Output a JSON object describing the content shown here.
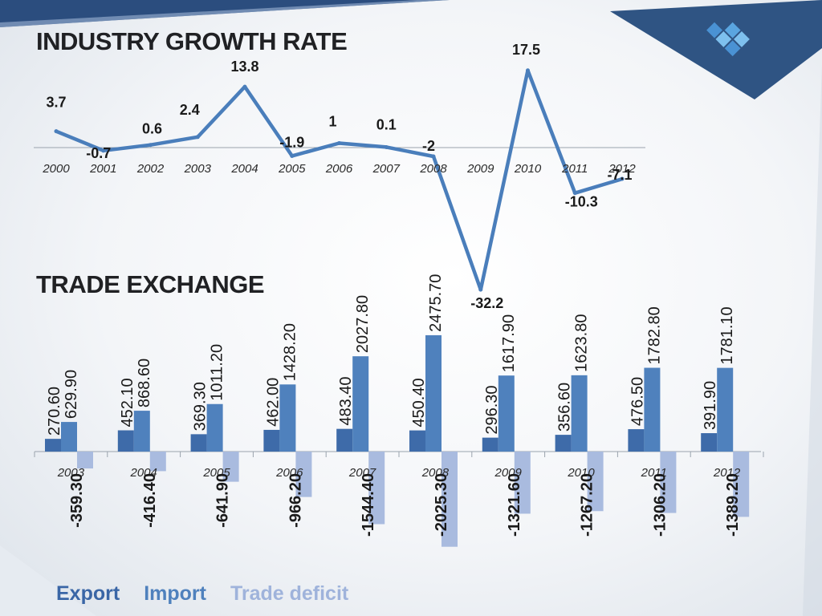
{
  "colors": {
    "line": "#4a7ebb",
    "export": "#3e6ba9",
    "import": "#4f81bd",
    "deficit": "#a9bbdf",
    "legend_export": "#3a66a6",
    "legend_import": "#4f81bd",
    "legend_deficit": "#9fb3db",
    "axis": "#9aa3ad",
    "text": "#1a1a1a"
  },
  "logo": {
    "icon": "diamond-logo-icon"
  },
  "growth": {
    "title": "INDUSTRY GROWTH RATE"
  },
  "trade": {
    "title": "TRADE EXCHANGE"
  },
  "legend": {
    "export": "Export",
    "import": "Import",
    "deficit": "Trade deficit"
  },
  "chart_data": [
    {
      "type": "line",
      "title": "INDUSTRY GROWTH RATE",
      "x": [
        "2000",
        "2001",
        "2002",
        "2003",
        "2004",
        "2005",
        "2006",
        "2007",
        "2008",
        "2009",
        "2010",
        "2011",
        "2012"
      ],
      "series": [
        {
          "values": [
            3.7,
            -0.7,
            0.6,
            2.4,
            13.8,
            -1.9,
            1,
            0.1,
            -2,
            -32.2,
            17.5,
            -10.3,
            -7.1
          ],
          "labels": [
            "3.7",
            "-0.7",
            "0.6",
            "2.4",
            "13.8",
            "-1.9",
            "1",
            "0.1",
            "-2",
            "-32.2",
            "17.5",
            "-10.3",
            "-7.1"
          ]
        }
      ],
      "grid": false
    },
    {
      "type": "bar",
      "title": "TRADE EXCHANGE",
      "categories": [
        "2003",
        "2004",
        "2005",
        "2006",
        "2007",
        "2008",
        "2009",
        "2010",
        "2011",
        "2012"
      ],
      "series": [
        {
          "name": "Export",
          "values": [
            270.6,
            452.1,
            369.3,
            462.0,
            483.4,
            450.4,
            296.3,
            356.6,
            476.5,
            391.9
          ],
          "labels": [
            "270.60",
            "452.10",
            "369.30",
            "462.00",
            "483.40",
            "450.40",
            "296.30",
            "356.60",
            "476.50",
            "391.90"
          ]
        },
        {
          "name": "Import",
          "values": [
            629.9,
            868.6,
            1011.2,
            1428.2,
            2027.8,
            2475.7,
            1617.9,
            1623.8,
            1782.8,
            1781.1
          ],
          "labels": [
            "629.90",
            "868.60",
            "1011.20",
            "1428.20",
            "2027.80",
            "2475.70",
            "1617.90",
            "1623.80",
            "1782.80",
            "1781.10"
          ]
        },
        {
          "name": "Trade deficit",
          "values": [
            -359.3,
            -416.4,
            -641.9,
            -966.2,
            -1544.4,
            -2025.3,
            -1321.6,
            -1267.2,
            -1306.2,
            -1389.2
          ],
          "labels": [
            "-359.30",
            "-416.40",
            "-641.90",
            "-966.20",
            "-1544.40",
            "-2025.30",
            "-1321.60",
            "-1267.20",
            "-1306.20",
            "-1389.20"
          ]
        }
      ],
      "legend": "bottom-left",
      "grid": false
    }
  ]
}
